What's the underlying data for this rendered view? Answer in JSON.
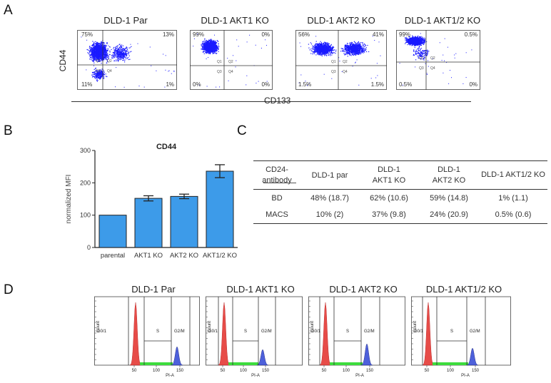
{
  "panel_a": {
    "letter": "A",
    "y_axis_label": "CD44",
    "x_axis_label": "CD133",
    "plots": [
      {
        "title": "DLD-1 Par",
        "q_tl": "75%",
        "q_tr": "13%",
        "q_bl": "11%",
        "q_br": "1%"
      },
      {
        "title": "DLD-1 AKT1 KO",
        "q_tl": "99%",
        "q_tr": "0%",
        "q_bl": "0%",
        "q_br": "0%"
      },
      {
        "title": "DLD-1 AKT2 KO",
        "q_tl": "56%",
        "q_tr": "41%",
        "q_bl": "1.5%",
        "q_br": "1.5%"
      },
      {
        "title": "DLD-1 AKT1/2 KO",
        "q_tl": "99%",
        "q_tr": "0.5%",
        "q_bl": "0.5%",
        "q_br": "0%"
      }
    ]
  },
  "panel_b": {
    "letter": "B",
    "chart_data": {
      "type": "bar",
      "title": "CD44",
      "ylabel": "normalized MFI",
      "xlabel": "",
      "categories": [
        "parental",
        "AKT1 KO",
        "AKT2 KO",
        "AKT1/2 KO"
      ],
      "values": [
        100,
        152,
        158,
        236
      ],
      "error": [
        0,
        8,
        7,
        20
      ],
      "ylim": [
        0,
        300
      ],
      "yticks": [
        "0",
        "100",
        "200",
        "300"
      ],
      "bar_color": "#3d9be9",
      "grid": false
    }
  },
  "panel_c": {
    "letter": "C",
    "header": [
      "CD24-antibody",
      "DLD-1 par",
      "DLD-1 AKT1 KO",
      "DLD-1 AKT2 KO",
      "DLD-1 AKT1/2 KO"
    ],
    "rows": [
      [
        "BD",
        "48% (18.7)",
        "62% (10.6)",
        "59% (14.8)",
        "1% (1.1)"
      ],
      [
        "MACS",
        "10% (2)",
        "37% (9.8)",
        "24% (20.9)",
        "0.5% (0.6)"
      ]
    ]
  },
  "panel_d": {
    "letter": "D",
    "y_label": "Count",
    "x_label": "PI-A",
    "gate_labels": [
      "G0/1",
      "S",
      "G2/M"
    ],
    "x_ticks": [
      "50",
      "100",
      "150"
    ],
    "colors": {
      "g1": "#e53935",
      "s": "#3ddc3d",
      "g2": "#3a4fd8"
    },
    "plots": [
      {
        "title": "DLD-1 Par"
      },
      {
        "title": "DLD-1 AKT1 KO"
      },
      {
        "title": "DLD-1 AKT2 KO"
      },
      {
        "title": "DLD-1 AKT1/2 KO"
      }
    ]
  }
}
